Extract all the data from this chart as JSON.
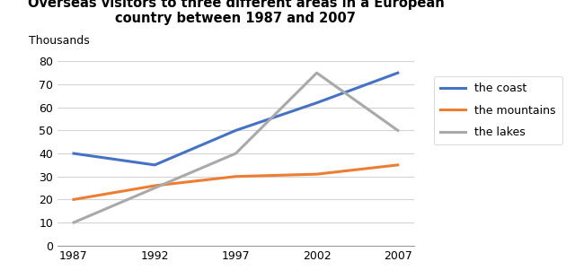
{
  "title_line1": "Overseas visitors to three different areas in a European",
  "title_line2": "country between 1987 and 2007",
  "thousands_label": "Thousands",
  "years": [
    1987,
    1992,
    1997,
    2002,
    2007
  ],
  "coast": [
    40,
    35,
    50,
    62,
    75
  ],
  "mountains": [
    20,
    26,
    30,
    31,
    35
  ],
  "lakes": [
    10,
    25,
    40,
    75,
    50
  ],
  "coast_color": "#4472C4",
  "mountains_color": "#ED7D31",
  "lakes_color": "#A9A9A9",
  "legend_labels": [
    "the coast",
    "the mountains",
    "the lakes"
  ],
  "ylim": [
    0,
    80
  ],
  "yticks": [
    0,
    10,
    20,
    30,
    40,
    50,
    60,
    70,
    80
  ],
  "background_color": "#FFFFFF",
  "line_width": 2.2
}
